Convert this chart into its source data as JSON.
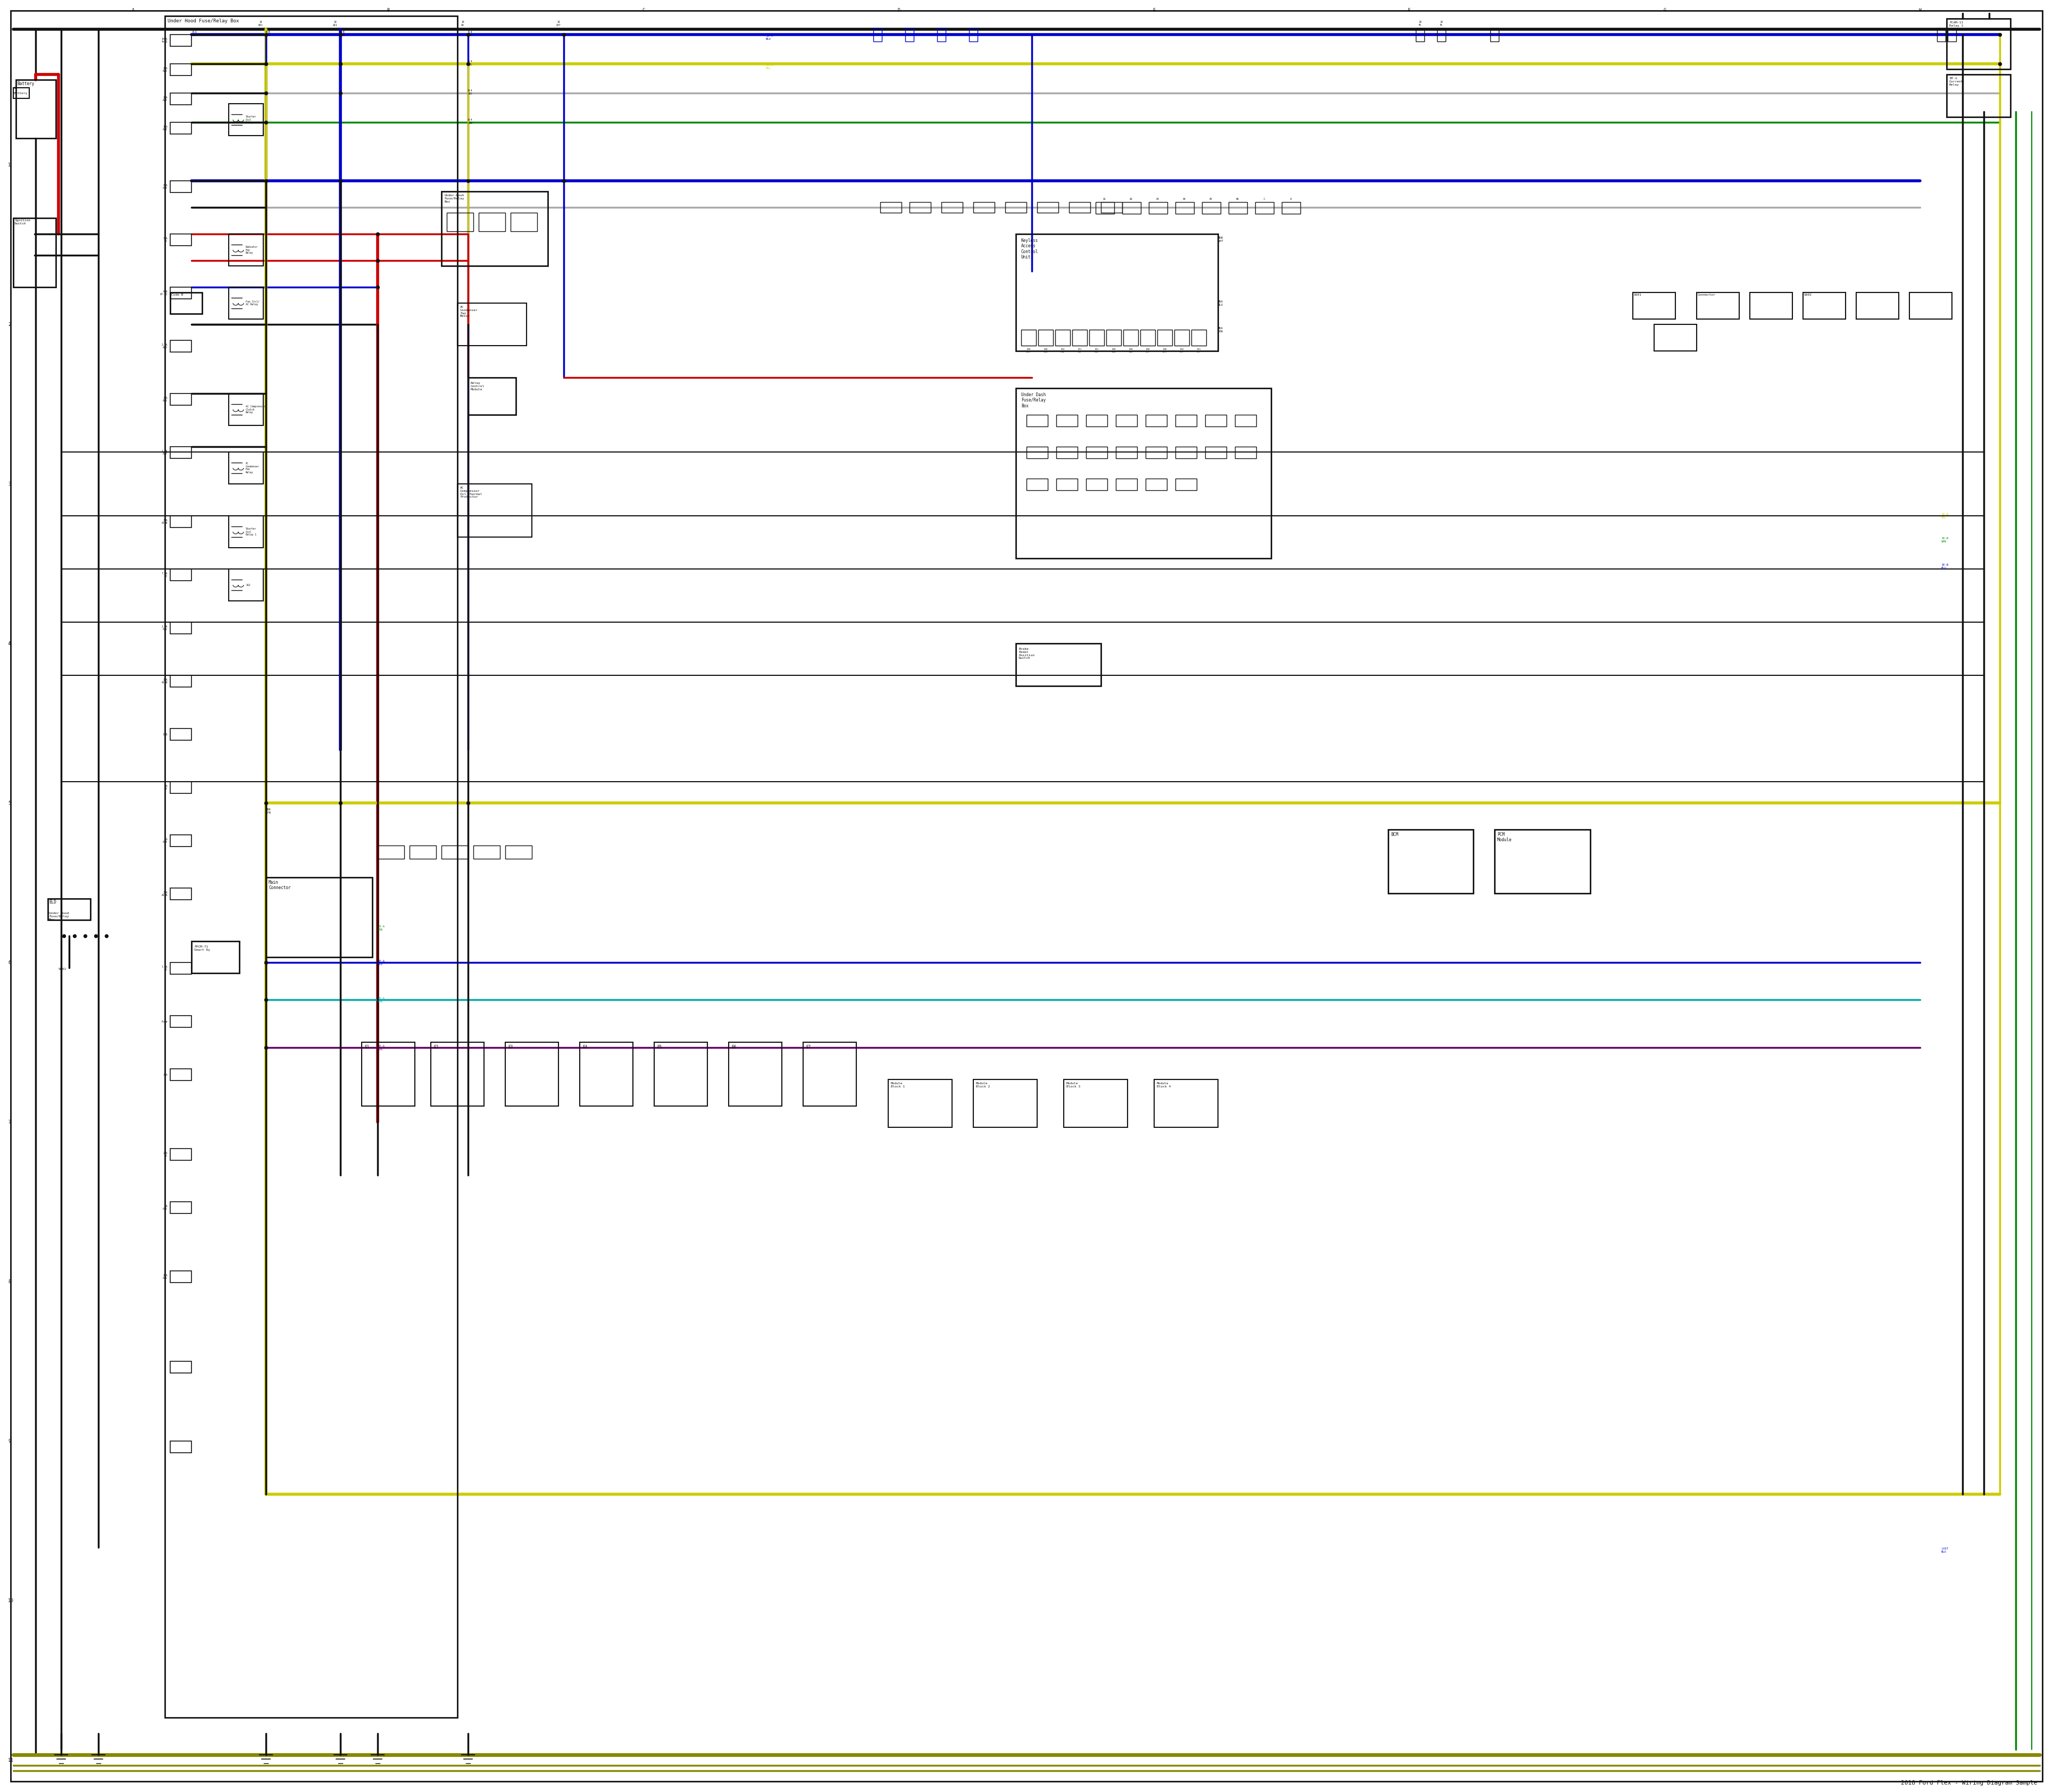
{
  "background": "#ffffff",
  "title": "2018 Ford Flex Wiring Diagram",
  "fig_width": 38.4,
  "fig_height": 33.5,
  "border_color": "#000000",
  "wire_colors": {
    "red": "#cc0000",
    "blue": "#0000cc",
    "yellow": "#cccc00",
    "green": "#008800",
    "black": "#111111",
    "gray": "#888888",
    "light_gray": "#aaaaaa",
    "cyan": "#00aaaa",
    "purple": "#660066",
    "dark_yellow": "#888800",
    "orange": "#cc6600",
    "brown": "#663300"
  }
}
